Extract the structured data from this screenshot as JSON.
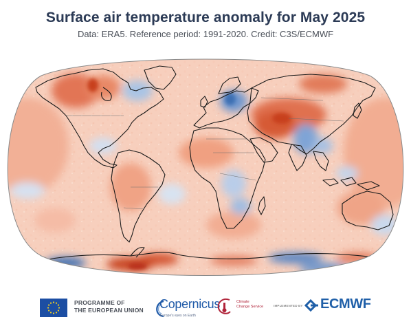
{
  "header": {
    "title": "Surface air temperature anomaly for May 2025",
    "subtitle": "Data: ERA5.  Reference period: 1991-2020.  Credit: C3S/ECMWF"
  },
  "map": {
    "description_variable": "surface air temperature anomaly",
    "month": "May 2025",
    "projection_shape": "robinson-like oval",
    "colors": {
      "warm_strong": "#c8401f",
      "warm": "#e5795a",
      "warm_light": "#f4b69c",
      "warm_faint": "#f9d9c8",
      "neutral": "#fbeee6",
      "cool_light": "#cfdcee",
      "cool": "#8fb2dd",
      "cool_strong": "#3d6fb3",
      "coastline": "#1a1a1a",
      "border": "#777777"
    }
  },
  "footer": {
    "eu_line1": "PROGRAMME OF",
    "eu_line2": "THE EUROPEAN UNION",
    "copernicus": "Copernicus",
    "copernicus_tag": "Europe's eyes on Earth",
    "c3s_line1": "Climate",
    "c3s_line2": "Change Service",
    "implemented_by": "IMPLEMENTED BY",
    "ecmwf": "ECMWF"
  }
}
